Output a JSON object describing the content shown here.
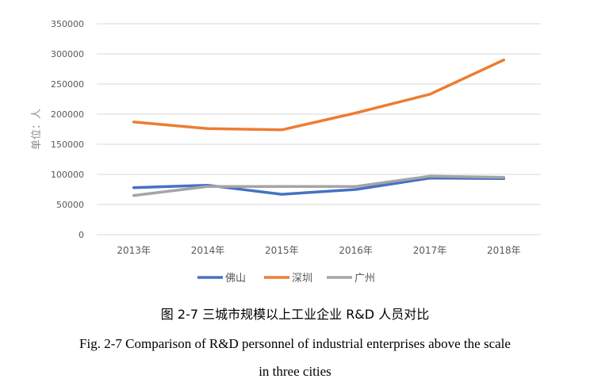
{
  "chart_data": {
    "type": "line",
    "categories": [
      "2013年",
      "2014年",
      "2015年",
      "2016年",
      "2017年",
      "2018年"
    ],
    "series": [
      {
        "name": "佛山",
        "color": "#4472C4",
        "values": [
          78000,
          82000,
          67000,
          75000,
          94000,
          93000
        ]
      },
      {
        "name": "深圳",
        "color": "#ED7D31",
        "values": [
          187000,
          176000,
          174000,
          202000,
          233000,
          290000
        ]
      },
      {
        "name": "广州",
        "color": "#A5A5A5",
        "values": [
          65000,
          80000,
          80000,
          80000,
          97000,
          95000
        ]
      }
    ],
    "ylabel": "单位：人",
    "ylim": [
      0,
      350000
    ],
    "yticks": [
      0,
      50000,
      100000,
      150000,
      200000,
      250000,
      300000,
      350000
    ],
    "grid": true,
    "legend_position": "bottom"
  },
  "captions": {
    "zh": "图 2-7 三城市规模以上工业企业 R&D 人员对比",
    "en_line1": "Fig. 2-7 Comparison of R&D personnel of industrial enterprises above the scale",
    "en_line2": "in three cities"
  }
}
